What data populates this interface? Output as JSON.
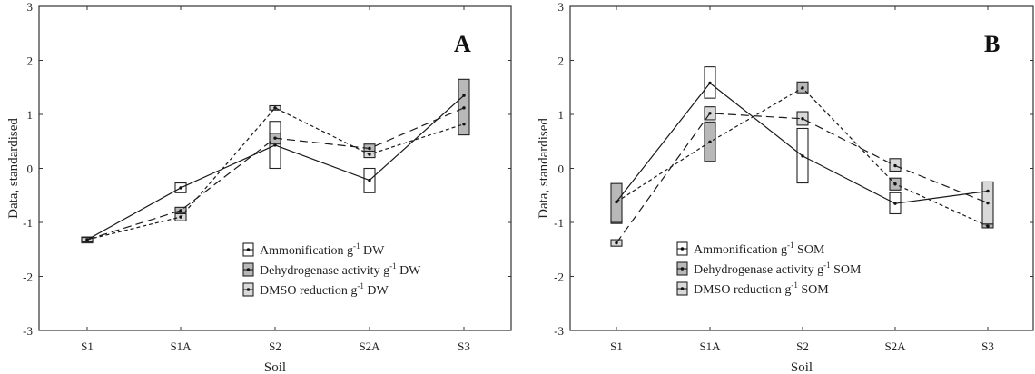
{
  "figure": {
    "panels": [
      "A",
      "B"
    ]
  },
  "chart_data": [
    {
      "panel": "A",
      "type": "line",
      "title": "",
      "panel_label": "A",
      "xlabel": "Soil",
      "ylabel": "Data, standardised",
      "ylim": [
        -3,
        3
      ],
      "yticks": [
        3,
        2,
        1,
        0,
        -1,
        -2,
        -3
      ],
      "categories": [
        "S1",
        "S1A",
        "S2",
        "S2A",
        "S3"
      ],
      "grid": false,
      "legend_position": "lower right (inside)",
      "series": [
        {
          "name": "Ammonification g-1 DW",
          "label": "Ammonification g",
          "sup": "-1",
          "unit": " DW",
          "line_style": "solid",
          "box_fill": "#ffffff",
          "values": [
            -1.32,
            -0.36,
            0.43,
            -0.22,
            1.35
          ],
          "boxes": [
            [
              -1.38,
              -1.27
            ],
            [
              -0.45,
              -0.27
            ],
            [
              0.0,
              0.87
            ],
            [
              -0.45,
              0.0
            ],
            null
          ]
        },
        {
          "name": "Dehydrogenase activity g-1 DW",
          "label": "Dehydrogenase activity g",
          "sup": "-1",
          "unit": " DW",
          "line_style": "long-dash",
          "box_fill": "#b8b8b8",
          "values": [
            -1.32,
            -0.78,
            0.56,
            0.37,
            1.12
          ],
          "boxes": [
            [
              -1.36,
              -1.28
            ],
            [
              -0.82,
              -0.72
            ],
            [
              0.45,
              0.65
            ],
            [
              0.3,
              0.45
            ],
            [
              0.62,
              1.65
            ]
          ]
        },
        {
          "name": "DMSO reduction g-1 DW",
          "label": "DMSO reduction g",
          "sup": "-1",
          "unit": " DW",
          "line_style": "short-dash",
          "box_fill": "#d9d9d9",
          "values": [
            -1.32,
            -0.9,
            1.12,
            0.26,
            0.82
          ],
          "boxes": [
            [
              -1.36,
              -1.28
            ],
            [
              -0.97,
              -0.84
            ],
            [
              1.08,
              1.16
            ],
            [
              0.2,
              0.32
            ],
            null
          ]
        }
      ]
    },
    {
      "panel": "B",
      "type": "line",
      "title": "",
      "panel_label": "B",
      "xlabel": "Soil",
      "ylabel": "Data, standardised",
      "ylim": [
        -3,
        3
      ],
      "yticks": [
        3,
        2,
        1,
        0,
        -1,
        -2,
        -3
      ],
      "categories": [
        "S1",
        "S1A",
        "S2",
        "S2A",
        "S3"
      ],
      "grid": false,
      "legend_position": "lower center (inside)",
      "series": [
        {
          "name": "Ammonification g-1 SOM",
          "label": "Ammonification g",
          "sup": "-1",
          "unit": " SOM",
          "line_style": "solid",
          "box_fill": "#ffffff",
          "values": [
            -0.62,
            1.58,
            0.23,
            -0.65,
            -0.42
          ],
          "boxes": [
            [
              -1.02,
              -0.95
            ],
            [
              1.3,
              1.88
            ],
            [
              -0.27,
              0.74
            ],
            [
              -0.84,
              -0.45
            ],
            null
          ]
        },
        {
          "name": "Dehydrogenase activity g-1 SOM",
          "label": "Dehydrogenase activity g",
          "sup": "-1",
          "unit": " SOM",
          "line_style": "long-dash",
          "box_fill": "#b8b8b8",
          "values": [
            -1.38,
            1.02,
            0.92,
            0.05,
            -0.64
          ],
          "boxes": [
            [
              -1.0,
              -0.28
            ],
            [
              0.13,
              0.86
            ],
            [
              1.4,
              1.6
            ],
            [
              -0.4,
              -0.18
            ],
            [
              -1.1,
              -1.03
            ]
          ]
        },
        {
          "name": "DMSO reduction g-1 SOM",
          "label": "DMSO reduction g",
          "sup": "-1",
          "unit": " SOM",
          "line_style": "short-dash",
          "box_fill": "#d9d9d9",
          "values": [
            -0.62,
            0.49,
            1.49,
            -0.29,
            -1.07
          ],
          "boxes": [
            [
              -1.44,
              -1.32
            ],
            [
              0.9,
              1.14
            ],
            [
              0.8,
              1.05
            ],
            [
              -0.05,
              0.18
            ],
            [
              -1.03,
              -0.25
            ]
          ]
        }
      ]
    }
  ],
  "colors": {
    "axis": "#333333",
    "line": "#1a1a1a",
    "box_white": "#ffffff",
    "box_dark": "#b8b8b8",
    "box_light": "#d9d9d9"
  }
}
